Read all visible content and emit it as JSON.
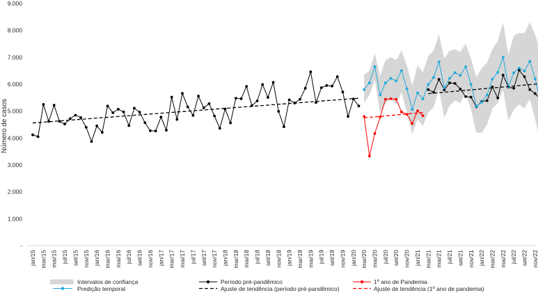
{
  "chart_data": {
    "type": "line",
    "title": "",
    "xlabel": "",
    "ylabel": "Número de casos",
    "ylim": [
      0,
      9000
    ],
    "yticks": [
      {
        "value": 0,
        "label": "-"
      },
      {
        "value": 1000,
        "label": "1.000"
      },
      {
        "value": 2000,
        "label": "2.000"
      },
      {
        "value": 3000,
        "label": "3.000"
      },
      {
        "value": 4000,
        "label": "4.000"
      },
      {
        "value": 5000,
        "label": "5.000"
      },
      {
        "value": 6000,
        "label": "6.000"
      },
      {
        "value": 7000,
        "label": "7.000"
      },
      {
        "value": 8000,
        "label": "8.000"
      },
      {
        "value": 9000,
        "label": "9.000"
      }
    ],
    "months": [
      "jan/15",
      "fev/15",
      "mar/15",
      "abr/15",
      "mai/15",
      "jun/15",
      "jul/15",
      "ago/15",
      "set/15",
      "out/15",
      "nov/15",
      "dez/15",
      "jan/16",
      "fev/16",
      "mar/16",
      "abr/16",
      "mai/16",
      "jun/16",
      "jul/16",
      "ago/16",
      "set/16",
      "out/16",
      "nov/16",
      "dez/16",
      "jan/17",
      "fev/17",
      "mar/17",
      "abr/17",
      "mai/17",
      "jun/17",
      "jul/17",
      "ago/17",
      "set/17",
      "out/17",
      "nov/17",
      "dez/17",
      "jan/18",
      "fev/18",
      "mar/18",
      "abr/18",
      "mai/18",
      "jun/18",
      "jul/18",
      "ago/18",
      "set/18",
      "out/18",
      "nov/18",
      "dez/18",
      "jan/19",
      "fev/19",
      "mar/19",
      "abr/19",
      "mai/19",
      "jun/19",
      "jul/19",
      "ago/19",
      "set/19",
      "out/19",
      "nov/19",
      "dez/19",
      "jan/20",
      "fev/20",
      "mar/20",
      "abr/20",
      "mai/20",
      "jun/20",
      "jul/20",
      "ago/20",
      "set/20",
      "out/20",
      "nov/20",
      "dez/20",
      "jan/21",
      "fev/21",
      "mar/21",
      "abr/21",
      "mai/21",
      "jun/21",
      "jul/21",
      "ago/21",
      "set/21",
      "out/21",
      "nov/21",
      "dez/21",
      "jan/22",
      "fev/22",
      "mar/22",
      "abr/22",
      "mai/22",
      "jun/22",
      "jul/22",
      "ago/22",
      "set/22",
      "out/22",
      "nov/22",
      "dez/22"
    ],
    "tick_label_step": 2,
    "series": [
      {
        "name": "Período pré-pandêmico",
        "color": "#000000",
        "segments": [
          {
            "start": 0,
            "values": [
              4120,
              4050,
              5250,
              4620,
              5220,
              4620,
              4520,
              4720,
              4850,
              4760,
              4400,
              3870,
              4450,
              4210,
              5190,
              4940,
              5070,
              4970,
              4460,
              5110,
              4960,
              4570,
              4270,
              4260,
              4780,
              4290,
              5520,
              4690,
              5660,
              5160,
              4840,
              5560,
              5120,
              5280,
              4820,
              4360,
              5080,
              4560,
              5480,
              5460,
              5920,
              5200,
              5380,
              5990,
              5510,
              6070,
              4990,
              4420,
              5420,
              5300,
              5440,
              5850,
              6460,
              5320,
              5870,
              5950,
              5930,
              6280,
              5710,
              4800,
              5450,
              5190
            ]
          },
          {
            "start": 74,
            "values": [
              5800,
              5700,
              6180,
              5790,
              6050,
              6030,
              5820,
              5540,
              5520,
              5160,
              5360,
              5390,
              5900,
              5490,
              6340,
              5890,
              5850,
              6520,
              6280,
              5800,
              5650,
              5450
            ]
          }
        ]
      },
      {
        "name": "1º ano de Pandemia",
        "color": "#ff0000",
        "segments": [
          {
            "start": 62,
            "values": [
              4800,
              3330,
              4170,
              4780,
              5440,
              5460,
              5440,
              4970,
              4880,
              4540,
              5010,
              4830
            ]
          }
        ]
      },
      {
        "name": "Predição temporal",
        "color": "#1eaadc",
        "segments": [
          {
            "start": 62,
            "values": [
              5800,
              6050,
              6650,
              5600,
              6050,
              6220,
              6120,
              6500,
              5830,
              5060,
              5680,
              5450,
              5990,
              6250,
              6830,
              5870,
              6220,
              6430,
              6330,
              6650,
              5990,
              5180,
              5330,
              5600,
              6190,
              6440,
              7000,
              5910,
              6430,
              6600,
              6490,
              6850,
              6200,
              5330
            ]
          }
        ]
      }
    ],
    "confidence_band": {
      "name": "Intervalos de confiança",
      "color": "#d6d6d6",
      "start": 62,
      "upper": [
        6350,
        6500,
        7150,
        6300,
        6900,
        7000,
        6900,
        7250,
        6700,
        5950,
        6700,
        6450,
        7050,
        7250,
        7850,
        6950,
        7250,
        7300,
        7200,
        7500,
        6950,
        6250,
        6600,
        6800,
        7300,
        7600,
        8300,
        7100,
        7800,
        7900,
        7900,
        8300,
        7850,
        7200
      ],
      "lower": [
        5300,
        5600,
        6150,
        4950,
        5300,
        5450,
        5250,
        5700,
        4950,
        4150,
        4700,
        4450,
        4950,
        5150,
        5800,
        4750,
        5200,
        5400,
        5300,
        5700,
        5050,
        4200,
        4200,
        4500,
        5100,
        5300,
        5800,
        4650,
        5050,
        5250,
        5100,
        5450,
        4700,
        3800
      ]
    },
    "trend_lines": [
      {
        "name": "Ajuste de tendência (período pré-pandêmico)",
        "color": "#000000",
        "from": [
          0,
          4560
        ],
        "to": [
          61,
          5480
        ]
      },
      {
        "name": "Ajuste de tendência (1º ano de pandemia)",
        "color": "#ff0000",
        "from": [
          62,
          4750
        ],
        "to": [
          73,
          4950
        ]
      },
      {
        "name": "",
        "color": "#000000",
        "from": [
          74,
          5650
        ],
        "to": [
          95,
          6020
        ]
      }
    ],
    "legend": {
      "ci": "Intervalos de confiança",
      "pred": "Predição temporal",
      "pre": "Período pré-pandêmico",
      "trend_pre": "Ajuste de tendência (período pré-pandêmico)",
      "pand": "1º ano de Pandemia",
      "trend_pand": "Ajuste de tendência (1º ano de pandemia)"
    }
  }
}
